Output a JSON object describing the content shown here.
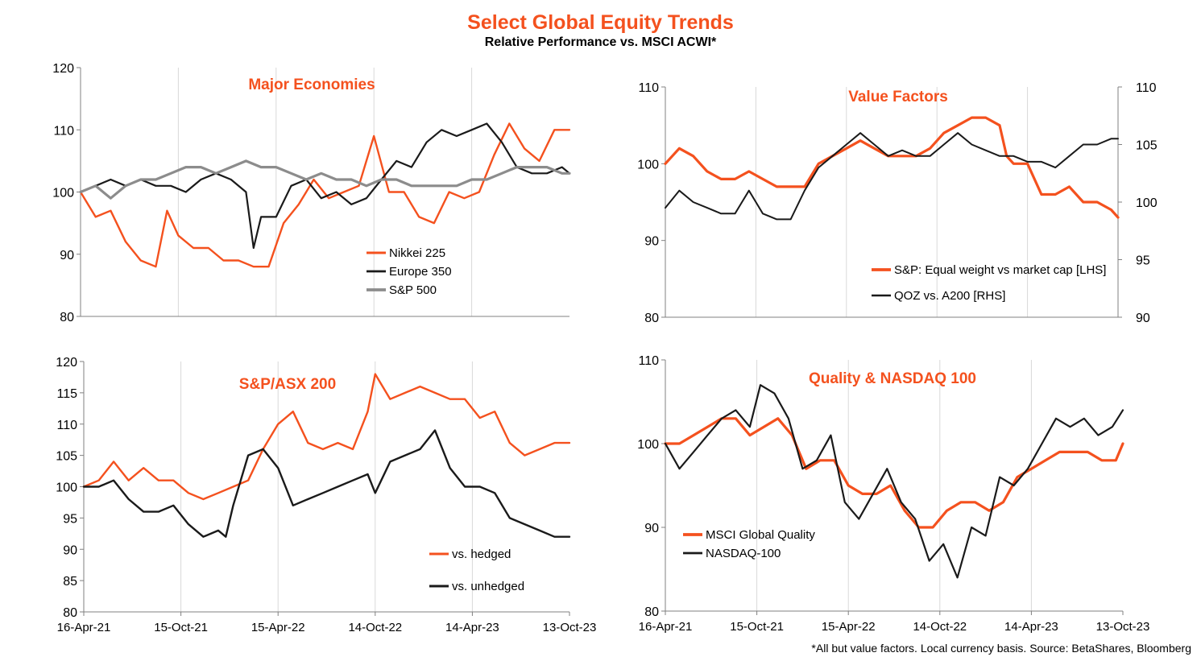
{
  "header": {
    "title": "Select Global Equity Trends",
    "subtitle": "Relative Performance vs. MSCI ACWI*"
  },
  "footnote": "*All but value factors. Local currency basis.  Source: BetaShares, Bloomberg",
  "colors": {
    "orange": "#F4511E",
    "black": "#1A1A1A",
    "grey": "#8C8C8C",
    "grid": "#D9D9D9",
    "accent_title": "#F4511E"
  },
  "x_axis_labels": [
    "16-Apr-21",
    "15-Oct-21",
    "15-Apr-22",
    "14-Oct-22",
    "14-Apr-23",
    "13-Oct-23"
  ],
  "chart_data": [
    {
      "id": "major-economies",
      "type": "line",
      "title": "Major Economies",
      "y_axis": {
        "ylim": [
          80,
          120
        ],
        "ticks": [
          80,
          90,
          100,
          110,
          120
        ]
      },
      "x_range": [
        "2021-04-16",
        "2023-10-13"
      ],
      "x_labels_shown": false,
      "legend_position": "bottom-center",
      "series": [
        {
          "name": "Nikkei 225",
          "color": "#F4511E",
          "width": 2.4,
          "x": [
            "2021-04-16",
            "2021-05-14",
            "2021-06-11",
            "2021-07-09",
            "2021-08-06",
            "2021-09-03",
            "2021-09-24",
            "2021-10-15",
            "2021-11-12",
            "2021-12-10",
            "2022-01-07",
            "2022-02-04",
            "2022-03-04",
            "2022-04-01",
            "2022-04-29",
            "2022-05-27",
            "2022-06-24",
            "2022-07-22",
            "2022-08-19",
            "2022-09-16",
            "2022-10-14",
            "2022-11-11",
            "2022-12-09",
            "2023-01-06",
            "2023-02-03",
            "2023-03-03",
            "2023-03-31",
            "2023-04-28",
            "2023-05-26",
            "2023-06-23",
            "2023-07-21",
            "2023-08-18",
            "2023-09-15",
            "2023-10-13"
          ],
          "y": [
            100,
            96,
            97,
            92,
            89,
            88,
            97,
            93,
            91,
            91,
            89,
            89,
            88,
            88,
            95,
            98,
            102,
            99,
            100,
            101,
            109,
            100,
            100,
            96,
            95,
            100,
            99,
            100,
            106,
            111,
            107,
            105,
            110,
            110
          ]
        },
        {
          "name": "Europe 350",
          "color": "#1A1A1A",
          "width": 2.2,
          "x": [
            "2021-04-16",
            "2021-05-14",
            "2021-06-11",
            "2021-07-09",
            "2021-08-06",
            "2021-09-03",
            "2021-10-01",
            "2021-10-29",
            "2021-11-26",
            "2021-12-24",
            "2022-01-21",
            "2022-02-18",
            "2022-03-04",
            "2022-03-18",
            "2022-04-15",
            "2022-05-13",
            "2022-06-10",
            "2022-07-08",
            "2022-08-05",
            "2022-09-02",
            "2022-09-30",
            "2022-10-28",
            "2022-11-25",
            "2022-12-23",
            "2023-01-20",
            "2023-02-17",
            "2023-03-17",
            "2023-04-14",
            "2023-05-12",
            "2023-06-09",
            "2023-07-07",
            "2023-08-04",
            "2023-09-01",
            "2023-09-29",
            "2023-10-13"
          ],
          "y": [
            100,
            101,
            102,
            101,
            102,
            101,
            101,
            100,
            102,
            103,
            102,
            100,
            91,
            96,
            96,
            101,
            102,
            99,
            100,
            98,
            99,
            102,
            105,
            104,
            108,
            110,
            109,
            110,
            111,
            108,
            104,
            103,
            103,
            104,
            103
          ]
        },
        {
          "name": "S&P 500",
          "color": "#8C8C8C",
          "width": 3.2,
          "x": [
            "2021-04-16",
            "2021-05-14",
            "2021-06-11",
            "2021-07-09",
            "2021-08-06",
            "2021-09-03",
            "2021-10-01",
            "2021-10-29",
            "2021-11-26",
            "2021-12-24",
            "2022-01-21",
            "2022-02-18",
            "2022-03-18",
            "2022-04-15",
            "2022-05-13",
            "2022-06-10",
            "2022-07-08",
            "2022-08-05",
            "2022-09-02",
            "2022-09-30",
            "2022-10-28",
            "2022-11-25",
            "2022-12-23",
            "2023-01-20",
            "2023-02-17",
            "2023-03-17",
            "2023-04-14",
            "2023-05-12",
            "2023-06-09",
            "2023-07-07",
            "2023-08-04",
            "2023-09-01",
            "2023-09-29",
            "2023-10-13"
          ],
          "y": [
            100,
            101,
            99,
            101,
            102,
            102,
            103,
            104,
            104,
            103,
            104,
            105,
            104,
            104,
            103,
            102,
            103,
            102,
            102,
            101,
            102,
            102,
            101,
            101,
            101,
            101,
            102,
            102,
            103,
            104,
            104,
            104,
            103,
            103
          ]
        }
      ]
    },
    {
      "id": "value-factors",
      "type": "line",
      "title": "Value Factors",
      "y_axis": {
        "ylim": [
          80,
          110
        ],
        "ticks": [
          80,
          90,
          100,
          110
        ]
      },
      "y_axis_right": {
        "ylim": [
          90,
          110
        ],
        "ticks": [
          90,
          95,
          100,
          105,
          110
        ]
      },
      "x_range": [
        "2021-04-16",
        "2023-10-13"
      ],
      "x_labels_shown": false,
      "legend_position": "bottom-right",
      "series": [
        {
          "name": "S&P: Equal weight vs market cap [LHS]",
          "color": "#F4511E",
          "width": 3.2,
          "axis": "left",
          "x": [
            "2021-04-16",
            "2021-05-14",
            "2021-06-11",
            "2021-07-09",
            "2021-08-06",
            "2021-09-03",
            "2021-10-01",
            "2021-10-29",
            "2021-11-26",
            "2021-12-24",
            "2022-01-21",
            "2022-02-18",
            "2022-03-18",
            "2022-04-15",
            "2022-05-13",
            "2022-06-10",
            "2022-07-08",
            "2022-08-05",
            "2022-09-02",
            "2022-09-30",
            "2022-10-28",
            "2022-11-25",
            "2022-12-23",
            "2023-01-20",
            "2023-02-17",
            "2023-03-03",
            "2023-03-17",
            "2023-04-14",
            "2023-05-12",
            "2023-06-09",
            "2023-07-07",
            "2023-08-04",
            "2023-09-01",
            "2023-09-29",
            "2023-10-13"
          ],
          "y": [
            100,
            102,
            101,
            99,
            98,
            98,
            99,
            98,
            97,
            97,
            97,
            100,
            101,
            102,
            103,
            102,
            101,
            101,
            101,
            102,
            104,
            105,
            106,
            106,
            105,
            101,
            100,
            100,
            96,
            96,
            97,
            95,
            95,
            94,
            93
          ]
        },
        {
          "name": "QOZ vs. A200 [RHS]",
          "color": "#1A1A1A",
          "width": 2.0,
          "axis": "right",
          "x": [
            "2021-04-16",
            "2021-05-14",
            "2021-06-11",
            "2021-07-09",
            "2021-08-06",
            "2021-09-03",
            "2021-10-01",
            "2021-10-29",
            "2021-11-26",
            "2021-12-24",
            "2022-01-21",
            "2022-02-18",
            "2022-03-18",
            "2022-04-15",
            "2022-05-13",
            "2022-06-10",
            "2022-07-08",
            "2022-08-05",
            "2022-09-02",
            "2022-09-30",
            "2022-10-28",
            "2022-11-25",
            "2022-12-23",
            "2023-01-20",
            "2023-02-17",
            "2023-03-17",
            "2023-04-14",
            "2023-05-12",
            "2023-06-09",
            "2023-07-07",
            "2023-08-04",
            "2023-09-01",
            "2023-09-29",
            "2023-10-13"
          ],
          "y": [
            99.5,
            101,
            100,
            99.5,
            99,
            99,
            101,
            99,
            98.5,
            98.5,
            101,
            103,
            104,
            105,
            106,
            105,
            104,
            104.5,
            104,
            104,
            105,
            106,
            105,
            104.5,
            104,
            104,
            103.5,
            103.5,
            103,
            104,
            105,
            105,
            105.5,
            105.5
          ]
        }
      ]
    },
    {
      "id": "sp-asx-200",
      "type": "line",
      "title": "S&P/ASX 200",
      "y_axis": {
        "ylim": [
          80,
          120
        ],
        "ticks": [
          80,
          85,
          90,
          95,
          100,
          105,
          110,
          115,
          120
        ]
      },
      "x_range": [
        "2021-04-16",
        "2023-10-13"
      ],
      "x_labels_shown": true,
      "legend_position": "bottom-right",
      "series": [
        {
          "name": "vs. hedged",
          "color": "#F4511E",
          "width": 2.4,
          "x": [
            "2021-04-16",
            "2021-05-14",
            "2021-06-11",
            "2021-07-09",
            "2021-08-06",
            "2021-09-03",
            "2021-10-01",
            "2021-10-29",
            "2021-11-26",
            "2021-12-24",
            "2022-01-21",
            "2022-02-18",
            "2022-03-18",
            "2022-04-15",
            "2022-05-13",
            "2022-06-10",
            "2022-07-08",
            "2022-08-05",
            "2022-09-02",
            "2022-09-30",
            "2022-10-14",
            "2022-11-11",
            "2022-12-09",
            "2023-01-06",
            "2023-02-03",
            "2023-03-03",
            "2023-03-31",
            "2023-04-28",
            "2023-05-26",
            "2023-06-23",
            "2023-07-21",
            "2023-08-18",
            "2023-09-15",
            "2023-10-13"
          ],
          "y": [
            100,
            101,
            104,
            101,
            103,
            101,
            101,
            99,
            98,
            99,
            100,
            101,
            106,
            110,
            112,
            107,
            106,
            107,
            106,
            112,
            118,
            114,
            115,
            116,
            115,
            114,
            114,
            111,
            112,
            107,
            105,
            106,
            107,
            107
          ]
        },
        {
          "name": "vs. unhedged",
          "color": "#1A1A1A",
          "width": 2.4,
          "x": [
            "2021-04-16",
            "2021-05-14",
            "2021-06-11",
            "2021-07-09",
            "2021-08-06",
            "2021-09-03",
            "2021-10-01",
            "2021-10-29",
            "2021-11-26",
            "2021-12-24",
            "2022-01-07",
            "2022-01-21",
            "2022-02-18",
            "2022-03-18",
            "2022-04-15",
            "2022-05-13",
            "2022-06-10",
            "2022-07-08",
            "2022-08-05",
            "2022-09-02",
            "2022-09-30",
            "2022-10-14",
            "2022-11-11",
            "2022-12-09",
            "2023-01-06",
            "2023-02-03",
            "2023-03-03",
            "2023-03-31",
            "2023-04-28",
            "2023-05-26",
            "2023-06-23",
            "2023-07-21",
            "2023-08-18",
            "2023-09-15",
            "2023-10-13"
          ],
          "y": [
            100,
            100,
            101,
            98,
            96,
            96,
            97,
            94,
            92,
            93,
            92,
            97,
            105,
            106,
            103,
            97,
            98,
            99,
            100,
            101,
            102,
            99,
            104,
            105,
            106,
            109,
            103,
            100,
            100,
            99,
            95,
            94,
            93,
            92,
            92
          ]
        }
      ]
    },
    {
      "id": "quality-nasdaq",
      "type": "line",
      "title": "Quality & NASDAQ 100",
      "y_axis": {
        "ylim": [
          80,
          110
        ],
        "ticks": [
          80,
          90,
          100,
          110
        ]
      },
      "x_range": [
        "2021-04-16",
        "2023-10-13"
      ],
      "x_labels_shown": true,
      "legend_position": "bottom-left",
      "series": [
        {
          "name": "MSCI Global Quality",
          "color": "#F4511E",
          "width": 3.2,
          "x": [
            "2021-04-16",
            "2021-05-14",
            "2021-06-11",
            "2021-07-09",
            "2021-08-06",
            "2021-09-03",
            "2021-10-01",
            "2021-10-29",
            "2021-11-26",
            "2021-12-24",
            "2022-01-21",
            "2022-02-18",
            "2022-03-18",
            "2022-04-15",
            "2022-05-13",
            "2022-06-10",
            "2022-07-08",
            "2022-08-05",
            "2022-09-02",
            "2022-09-30",
            "2022-10-28",
            "2022-11-25",
            "2022-12-23",
            "2023-01-20",
            "2023-02-17",
            "2023-03-17",
            "2023-04-14",
            "2023-05-12",
            "2023-06-09",
            "2023-07-07",
            "2023-08-04",
            "2023-09-01",
            "2023-09-29",
            "2023-10-13"
          ],
          "y": [
            100,
            100,
            101,
            102,
            103,
            103,
            101,
            102,
            103,
            101,
            97,
            98,
            98,
            95,
            94,
            94,
            95,
            92,
            90,
            90,
            92,
            93,
            93,
            92,
            93,
            96,
            97,
            98,
            99,
            99,
            99,
            98,
            98,
            100
          ]
        },
        {
          "name": "NASDAQ-100",
          "color": "#1A1A1A",
          "width": 2.2,
          "x": [
            "2021-04-16",
            "2021-05-14",
            "2021-06-11",
            "2021-07-09",
            "2021-08-06",
            "2021-09-03",
            "2021-10-01",
            "2021-10-22",
            "2021-11-19",
            "2021-12-17",
            "2022-01-14",
            "2022-02-11",
            "2022-03-11",
            "2022-04-08",
            "2022-05-06",
            "2022-06-03",
            "2022-07-01",
            "2022-07-29",
            "2022-08-26",
            "2022-09-23",
            "2022-10-21",
            "2022-11-18",
            "2022-12-16",
            "2023-01-13",
            "2023-02-10",
            "2023-03-10",
            "2023-04-07",
            "2023-05-05",
            "2023-06-02",
            "2023-06-30",
            "2023-07-28",
            "2023-08-25",
            "2023-09-22",
            "2023-10-13"
          ],
          "y": [
            100,
            97,
            99,
            101,
            103,
            104,
            102,
            107,
            106,
            103,
            97,
            98,
            101,
            93,
            91,
            94,
            97,
            93,
            91,
            86,
            88,
            84,
            90,
            89,
            96,
            95,
            97,
            100,
            103,
            102,
            103,
            101,
            102,
            104
          ]
        }
      ]
    }
  ]
}
